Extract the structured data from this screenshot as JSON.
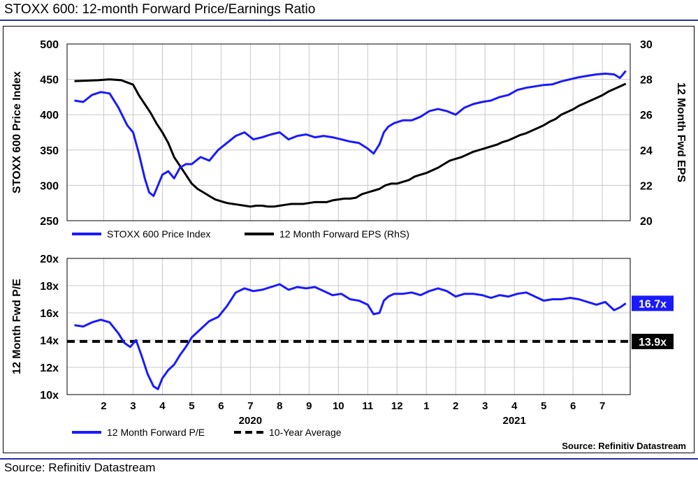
{
  "header": {
    "title": "STOXX 600: 12-month Forward Price/Earnings Ratio",
    "source_line": "Source: Refinitiv Datastream",
    "inner_source": "Source: Refinitiv Datastream"
  },
  "chart_data": [
    {
      "type": "line",
      "x_unit": "month index (0 = start Jan 2020)",
      "y_left_label": "STOXX 600 Price Index",
      "y_right_label": "12 Month Fwd EPS",
      "y_left_lim": [
        250,
        500
      ],
      "y_left_ticks": [
        250,
        300,
        350,
        400,
        450,
        500
      ],
      "y_right_lim": [
        20,
        30
      ],
      "y_right_ticks": [
        20,
        22,
        24,
        26,
        28,
        30
      ],
      "grid": true,
      "legend_placement": "bottom-left",
      "series": [
        {
          "name": "STOXX 600 Price Index",
          "axis": "left",
          "color": "#1a1aff",
          "x": [
            0,
            0.3,
            0.6,
            0.9,
            1.2,
            1.5,
            1.8,
            2.0,
            2.2,
            2.4,
            2.55,
            2.7,
            2.85,
            3.0,
            3.2,
            3.4,
            3.6,
            3.8,
            4.0,
            4.3,
            4.6,
            4.9,
            5.2,
            5.5,
            5.8,
            6.1,
            6.4,
            6.7,
            7.0,
            7.3,
            7.6,
            7.9,
            8.2,
            8.5,
            8.8,
            9.1,
            9.4,
            9.7,
            10.0,
            10.2,
            10.4,
            10.55,
            10.7,
            10.9,
            11.2,
            11.5,
            11.8,
            12.1,
            12.4,
            12.7,
            13.0,
            13.3,
            13.6,
            13.9,
            14.2,
            14.5,
            14.8,
            15.1,
            15.4,
            15.7,
            16.0,
            16.3,
            16.6,
            16.9,
            17.2,
            17.5,
            17.8,
            18.1,
            18.4,
            18.6,
            18.8
          ],
          "values": [
            420,
            418,
            428,
            432,
            430,
            410,
            385,
            375,
            345,
            310,
            290,
            285,
            300,
            315,
            320,
            310,
            325,
            330,
            330,
            340,
            335,
            350,
            360,
            370,
            375,
            365,
            368,
            372,
            375,
            365,
            370,
            372,
            368,
            370,
            368,
            365,
            362,
            360,
            352,
            345,
            358,
            375,
            383,
            388,
            392,
            392,
            397,
            405,
            408,
            405,
            400,
            410,
            415,
            418,
            420,
            425,
            428,
            435,
            438,
            440,
            442,
            443,
            447,
            450,
            453,
            455,
            457,
            458,
            457,
            452,
            462
          ]
        },
        {
          "name": "12 Month Forward EPS (RhS)",
          "axis": "right",
          "color": "#000000",
          "x": [
            0,
            0.8,
            1.2,
            1.6,
            2.0,
            2.2,
            2.4,
            2.6,
            2.8,
            3.0,
            3.2,
            3.4,
            3.6,
            3.8,
            4.0,
            4.2,
            4.4,
            4.6,
            4.8,
            5.0,
            5.2,
            5.4,
            5.6,
            5.8,
            6.0,
            6.2,
            6.4,
            6.6,
            6.8,
            7.0,
            7.2,
            7.4,
            7.6,
            7.8,
            8.0,
            8.2,
            8.4,
            8.6,
            8.8,
            9.0,
            9.2,
            9.4,
            9.6,
            9.8,
            10.0,
            10.2,
            10.4,
            10.6,
            10.8,
            11.0,
            11.2,
            11.4,
            11.6,
            11.8,
            12.0,
            12.2,
            12.4,
            12.6,
            12.8,
            13.0,
            13.2,
            13.4,
            13.6,
            13.8,
            14.0,
            14.2,
            14.4,
            14.6,
            14.8,
            15.0,
            15.2,
            15.4,
            15.6,
            15.8,
            16.0,
            16.2,
            16.4,
            16.6,
            16.8,
            17.0,
            17.2,
            17.4,
            17.6,
            17.8,
            18.0,
            18.2,
            18.4,
            18.6,
            18.8
          ],
          "values": [
            27.9,
            27.95,
            28.0,
            27.95,
            27.7,
            27.1,
            26.6,
            26.1,
            25.5,
            25.0,
            24.4,
            23.6,
            23.1,
            22.6,
            22.1,
            21.8,
            21.6,
            21.4,
            21.2,
            21.1,
            21.0,
            20.95,
            20.9,
            20.85,
            20.8,
            20.85,
            20.85,
            20.8,
            20.8,
            20.85,
            20.9,
            20.95,
            20.95,
            20.95,
            21.0,
            21.05,
            21.05,
            21.05,
            21.15,
            21.2,
            21.25,
            21.25,
            21.3,
            21.5,
            21.6,
            21.7,
            21.8,
            22.0,
            22.1,
            22.1,
            22.2,
            22.3,
            22.5,
            22.6,
            22.7,
            22.85,
            23.0,
            23.2,
            23.4,
            23.5,
            23.6,
            23.75,
            23.9,
            24.0,
            24.1,
            24.2,
            24.3,
            24.45,
            24.55,
            24.7,
            24.85,
            24.95,
            25.1,
            25.25,
            25.4,
            25.6,
            25.75,
            26.0,
            26.15,
            26.3,
            26.5,
            26.65,
            26.8,
            26.95,
            27.1,
            27.3,
            27.45,
            27.6,
            27.75
          ]
        }
      ]
    },
    {
      "type": "line",
      "y_label": "12 Month Fwd P/E",
      "ylim": [
        10,
        20
      ],
      "y_ticks": [
        10,
        12,
        14,
        16,
        18,
        20
      ],
      "y_tick_labels": [
        "10x",
        "12x",
        "14x",
        "16x",
        "18x",
        "20x"
      ],
      "x_tick_labels": [
        "2",
        "3",
        "4",
        "5",
        "6",
        "7",
        "8",
        "9",
        "10",
        "11",
        "12",
        "1",
        "2",
        "3",
        "4",
        "5",
        "6",
        "7"
      ],
      "x_tick_positions": [
        1,
        2,
        3,
        4,
        5,
        6,
        7,
        8,
        9,
        10,
        11,
        12,
        13,
        14,
        15,
        16,
        17,
        18
      ],
      "x_year_labels": [
        {
          "label": "2020",
          "at": 6
        },
        {
          "label": "2021",
          "at": 15
        }
      ],
      "xlim": [
        -0.25,
        18.95
      ],
      "grid": true,
      "legend_placement": "bottom-left",
      "series": [
        {
          "name": "12 Month Forward P/E",
          "color": "#1a1aff",
          "style": "solid",
          "x": [
            0,
            0.3,
            0.6,
            0.9,
            1.2,
            1.5,
            1.7,
            1.9,
            2.1,
            2.3,
            2.5,
            2.7,
            2.85,
            3.0,
            3.2,
            3.4,
            3.6,
            3.8,
            4.0,
            4.3,
            4.6,
            4.9,
            5.2,
            5.5,
            5.8,
            6.1,
            6.4,
            6.7,
            7.0,
            7.3,
            7.6,
            7.9,
            8.2,
            8.5,
            8.8,
            9.1,
            9.4,
            9.7,
            10.0,
            10.2,
            10.4,
            10.55,
            10.7,
            10.9,
            11.2,
            11.5,
            11.8,
            12.1,
            12.4,
            12.7,
            13.0,
            13.3,
            13.6,
            13.9,
            14.2,
            14.5,
            14.8,
            15.1,
            15.4,
            15.7,
            16.0,
            16.3,
            16.6,
            16.9,
            17.2,
            17.5,
            17.8,
            18.1,
            18.4,
            18.6,
            18.8
          ],
          "values": [
            15.1,
            15.0,
            15.3,
            15.5,
            15.3,
            14.5,
            13.8,
            13.5,
            14.0,
            12.8,
            11.5,
            10.6,
            10.4,
            11.2,
            11.8,
            12.2,
            12.9,
            13.5,
            14.2,
            14.8,
            15.4,
            15.7,
            16.5,
            17.5,
            17.8,
            17.6,
            17.7,
            17.9,
            18.1,
            17.7,
            17.9,
            17.8,
            17.9,
            17.6,
            17.3,
            17.4,
            17.0,
            16.9,
            16.6,
            15.9,
            16.0,
            16.9,
            17.2,
            17.4,
            17.4,
            17.5,
            17.3,
            17.6,
            17.8,
            17.6,
            17.2,
            17.4,
            17.4,
            17.3,
            17.1,
            17.3,
            17.2,
            17.4,
            17.5,
            17.2,
            16.9,
            17.0,
            17.0,
            17.1,
            17.0,
            16.8,
            16.6,
            16.8,
            16.2,
            16.4,
            16.7
          ]
        },
        {
          "name": "10-Year Average",
          "color": "#000000",
          "style": "dashed",
          "x": [
            -0.25,
            18.95
          ],
          "values": [
            13.9,
            13.9
          ]
        }
      ],
      "annotations": [
        {
          "text": "16.7x",
          "value": 16.7,
          "bg": "#1a1aff",
          "fg": "#ffffff"
        },
        {
          "text": "13.9x",
          "value": 13.9,
          "bg": "#000000",
          "fg": "#ffffff"
        }
      ]
    }
  ]
}
